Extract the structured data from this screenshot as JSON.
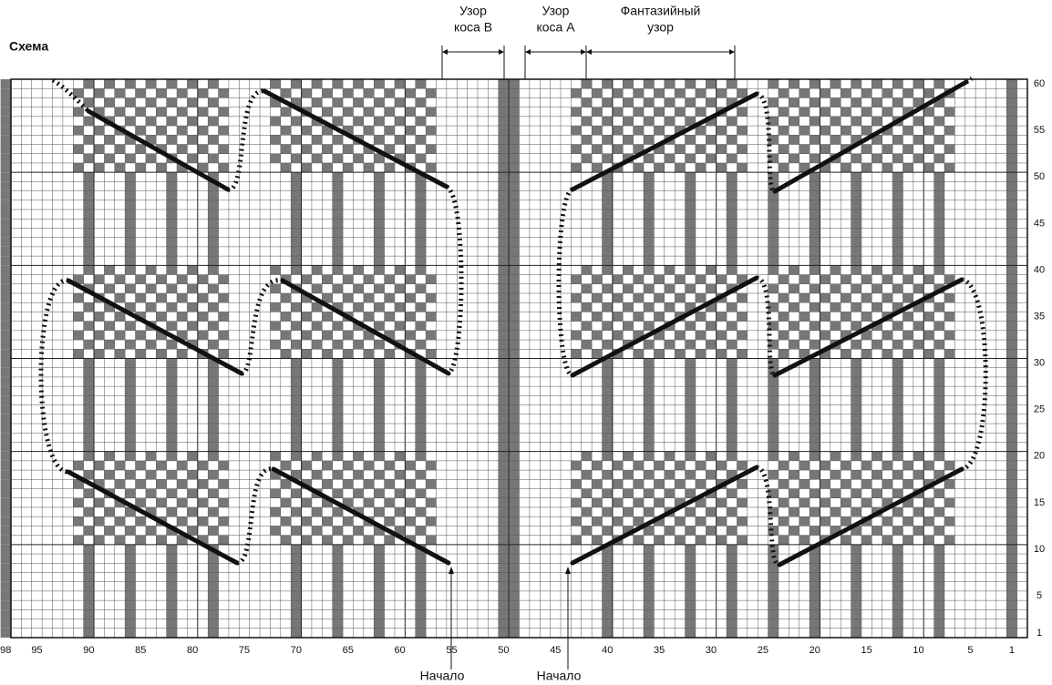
{
  "title": "Схема",
  "sections": [
    {
      "lines": [
        "Узор",
        "коса В"
      ]
    },
    {
      "lines": [
        "Узор",
        "коса А"
      ]
    },
    {
      "lines": [
        "Фантазийный",
        "узор"
      ]
    }
  ],
  "start_labels": [
    "Начало",
    "Начало"
  ],
  "column_numbers": [
    98,
    95,
    90,
    85,
    80,
    75,
    70,
    65,
    60,
    55,
    50,
    45,
    40,
    35,
    30,
    25,
    20,
    15,
    10,
    5,
    1
  ],
  "row_numbers": [
    60,
    55,
    50,
    45,
    40,
    35,
    30,
    25,
    20,
    15,
    10,
    5,
    1
  ]
}
